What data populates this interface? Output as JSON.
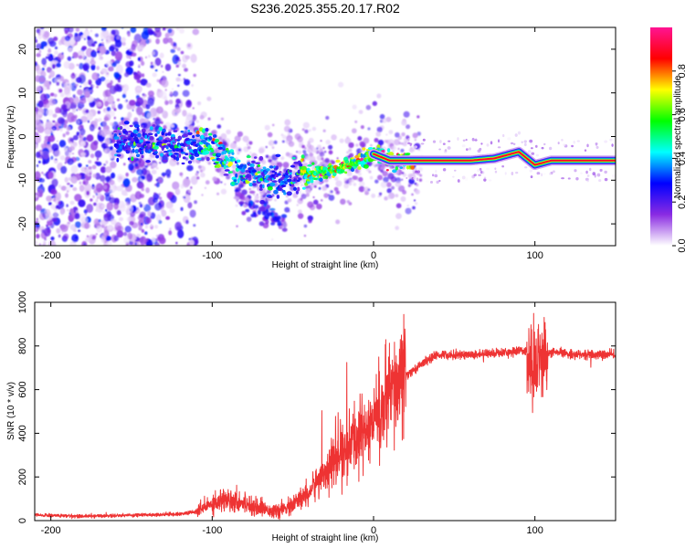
{
  "title": "S236.2025.355.20.17.R02",
  "chart_data": [
    {
      "type": "heatmap",
      "xlabel": "Height of straight line (km)",
      "ylabel": "Frequency (Hz)",
      "xlim": [
        -210,
        150
      ],
      "ylim": [
        -25,
        25
      ],
      "x_ticks": [
        -200,
        -100,
        0,
        100
      ],
      "y_ticks": [
        -20,
        -10,
        0,
        10,
        20
      ],
      "colorbar": {
        "label": "Normalized spectral amplitude",
        "range": [
          0,
          1
        ],
        "ticks": [
          "0.0",
          "0.2",
          "0.4",
          "0.6",
          "0.8"
        ],
        "colors": [
          "#ffffff",
          "#8a2be2",
          "#0000ff",
          "#00ffff",
          "#00ff00",
          "#ffff00",
          "#ff0000",
          "#ff1493"
        ]
      },
      "ridge": {
        "x": [
          -160,
          -140,
          -120,
          -105,
          -95,
          -85,
          -75,
          -65,
          -55,
          -45,
          -38,
          -30,
          -20,
          -10,
          0,
          10,
          20,
          40,
          60,
          75,
          85,
          90,
          95,
          100,
          110,
          130,
          150
        ],
        "y": [
          -1,
          -1.5,
          -2,
          -2,
          -4,
          -8,
          -9,
          -10,
          -10,
          -9,
          -8.5,
          -8,
          -7,
          -6,
          -4,
          -5.5,
          -5.5,
          -5.5,
          -5.5,
          -5,
          -4,
          -3.5,
          -5,
          -6.5,
          -5.5,
          -5.5,
          -5.5
        ]
      }
    },
    {
      "type": "line",
      "xlabel": "Height of straight line (km)",
      "ylabel": "SNR (10 * v/v)",
      "xlim": [
        -210,
        150
      ],
      "ylim": [
        0,
        1000
      ],
      "x_ticks": [
        -200,
        -100,
        0,
        100
      ],
      "y_ticks": [
        0,
        200,
        400,
        600,
        800,
        1000
      ],
      "series": [
        {
          "color": "#ee3333",
          "x": [
            -210,
            -180,
            -150,
            -120,
            -110,
            -100,
            -90,
            -80,
            -70,
            -60,
            -50,
            -40,
            -30,
            -20,
            -10,
            0,
            10,
            20,
            30,
            40,
            60,
            80,
            95,
            100,
            105,
            110,
            130,
            150
          ],
          "values": [
            25,
            20,
            25,
            30,
            40,
            80,
            100,
            80,
            60,
            40,
            70,
            130,
            230,
            300,
            380,
            460,
            560,
            660,
            720,
            760,
            760,
            770,
            780,
            720,
            760,
            770,
            760,
            760
          ]
        }
      ]
    }
  ]
}
